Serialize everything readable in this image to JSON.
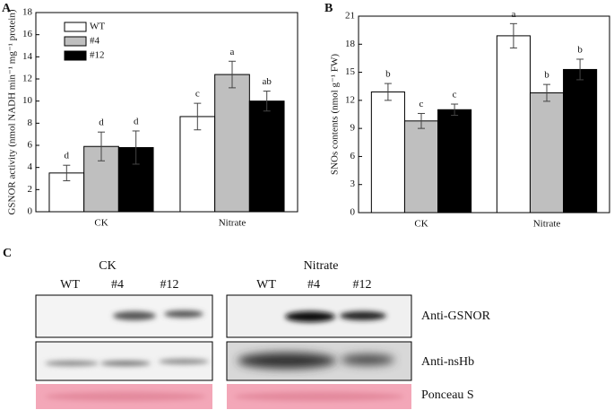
{
  "chart_data": [
    {
      "type": "bar",
      "panel": "A",
      "y_label": "GSNOR activity (nmol NADH min⁻¹ mg⁻¹ protein)",
      "categories": [
        "CK",
        "Nitrate"
      ],
      "series": [
        {
          "name": "WT",
          "color": "#ffffff",
          "values": [
            3.5,
            8.6
          ],
          "errors": [
            0.7,
            1.2
          ],
          "annotations": [
            "d",
            "c"
          ]
        },
        {
          "name": "#4",
          "color": "#bfbfbf",
          "values": [
            5.9,
            12.4
          ],
          "errors": [
            1.3,
            1.2
          ],
          "annotations": [
            "d",
            "a"
          ]
        },
        {
          "name": "#12",
          "color": "#000000",
          "values": [
            5.8,
            10.0
          ],
          "errors": [
            1.5,
            0.9
          ],
          "annotations": [
            "d",
            "ab"
          ]
        }
      ],
      "ylim": [
        0,
        18
      ],
      "yticks": [
        0,
        2,
        4,
        6,
        8,
        10,
        12,
        14,
        16,
        18
      ],
      "legend": "upper left"
    },
    {
      "type": "bar",
      "panel": "B",
      "y_label": "SNOs contents (nmol g⁻¹ FW)",
      "categories": [
        "CK",
        "Nitrate"
      ],
      "series": [
        {
          "color": "#ffffff",
          "values": [
            12.9,
            18.9
          ],
          "errors": [
            0.9,
            1.3
          ],
          "annotations": [
            "b",
            "a"
          ]
        },
        {
          "color": "#bfbfbf",
          "values": [
            9.8,
            12.8
          ],
          "errors": [
            0.8,
            0.9
          ],
          "annotations": [
            "c",
            "b"
          ]
        },
        {
          "color": "#000000",
          "values": [
            11.0,
            15.3
          ],
          "errors": [
            0.6,
            1.1
          ],
          "annotations": [
            "c",
            "b"
          ]
        }
      ],
      "ylim": [
        0,
        21
      ],
      "yticks": [
        0,
        3,
        6,
        9,
        12,
        15,
        18,
        21
      ]
    }
  ],
  "blot": {
    "panel": "C",
    "groups": [
      "CK",
      "Nitrate"
    ],
    "lanes": [
      [
        "WT",
        "#4",
        "#12"
      ],
      [
        "WT",
        "#4",
        "#12"
      ]
    ],
    "rows": [
      "Anti-GSNOR",
      "Anti-nsHb",
      "Ponceau S"
    ]
  }
}
